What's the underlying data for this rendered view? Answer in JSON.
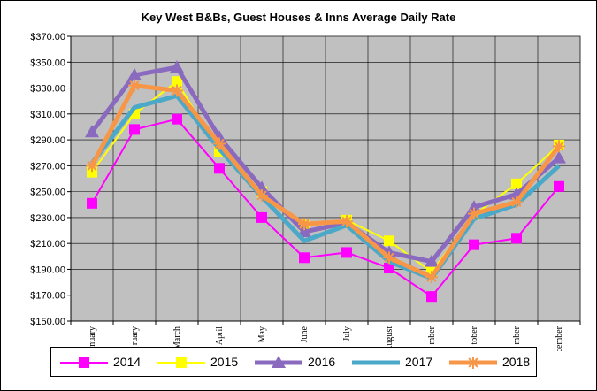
{
  "chart_data": {
    "type": "line",
    "title": "Key West B&Bs, Guest Houses & Inns Average Daily Rate",
    "xlabel": "",
    "ylabel": "",
    "ylim": [
      150,
      370
    ],
    "yticks": [
      "$370.00",
      "$350.00",
      "$330.00",
      "$310.00",
      "$290.00",
      "$270.00",
      "$250.00",
      "$230.00",
      "$210.00",
      "$190.00",
      "$170.00",
      "$150.00"
    ],
    "categories": [
      "January",
      "February",
      "March",
      "April",
      "May",
      "June",
      "July",
      "August",
      "September",
      "October",
      "November",
      "December"
    ],
    "category_labels_visible": [
      "nuary",
      "ruary",
      "March",
      "April",
      "May",
      "June",
      "July",
      "August",
      "mber",
      "tober",
      "mber",
      "December"
    ],
    "grid": true,
    "legend_position": "bottom",
    "series": [
      {
        "name": "2014",
        "color": "#ff00ff",
        "width": 2,
        "marker": "square",
        "values": [
          241,
          298,
          306,
          268,
          230,
          199,
          203,
          191,
          169,
          209,
          214,
          254
        ]
      },
      {
        "name": "2015",
        "color": "#ffff00",
        "width": 2,
        "marker": "square",
        "values": [
          265,
          310,
          335,
          281,
          250,
          224,
          228,
          212,
          188,
          232,
          256,
          286
        ]
      },
      {
        "name": "2016",
        "color": "#8a6abf",
        "width": 5,
        "marker": "triangle",
        "values": [
          296,
          340,
          346,
          292,
          253,
          219,
          226,
          203,
          196,
          238,
          248,
          276
        ]
      },
      {
        "name": "2017",
        "color": "#4aa8c8",
        "width": 5,
        "marker": "none",
        "values": [
          272,
          315,
          324,
          283,
          246,
          212,
          224,
          196,
          183,
          229,
          240,
          270
        ]
      },
      {
        "name": "2018",
        "color": "#f79646",
        "width": 5,
        "marker": "asterisk",
        "values": [
          270,
          332,
          328,
          287,
          247,
          225,
          227,
          199,
          184,
          233,
          242,
          285
        ]
      }
    ]
  }
}
